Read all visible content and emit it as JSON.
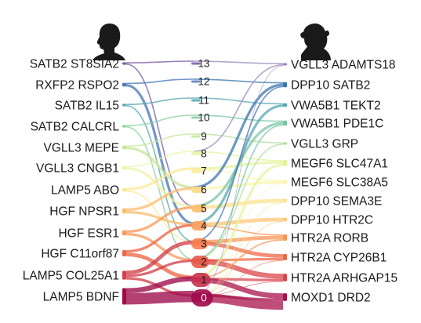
{
  "icons": {
    "left": "human-head-silhouette-icon",
    "right": "monkey-head-silhouette-icon"
  },
  "chart_data": {
    "type": "sankey",
    "left_nodes": [
      {
        "label": "SATB2 ST8SIA2",
        "color": "#7b5fa6",
        "weight": 2
      },
      {
        "label": "RXFP2 RSPO2",
        "color": "#4a78b8",
        "weight": 3
      },
      {
        "label": "SATB2 IL15",
        "color": "#58a6b2",
        "weight": 2
      },
      {
        "label": "SATB2 CALCRL",
        "color": "#8ecfa0",
        "weight": 2
      },
      {
        "label": "VGLL3 MEPE",
        "color": "#c5e79c",
        "weight": 3
      },
      {
        "label": "VGLL3 CNGB1",
        "color": "#eef4aa",
        "weight": 3
      },
      {
        "label": "LAMP5 ABO",
        "color": "#fde897",
        "weight": 3
      },
      {
        "label": "HGF NPSR1",
        "color": "#fdbd6f",
        "weight": 4
      },
      {
        "label": "HGF ESR1",
        "color": "#f99a5b",
        "weight": 4
      },
      {
        "label": "HGF C11orf87",
        "color": "#ed6645",
        "weight": 5
      },
      {
        "label": "LAMP5 COL25A1",
        "color": "#d2404c",
        "weight": 7
      },
      {
        "label": "LAMP5 BDNF",
        "color": "#9e0a4a",
        "weight": 13
      }
    ],
    "right_nodes": [
      {
        "label": "VGLL3 ADAMTS18",
        "color": "#9b87bd",
        "weight": 2
      },
      {
        "label": "DPP10 SATB2",
        "color": "#3b75b1",
        "weight": 4
      },
      {
        "label": "VWA5B1 TEKT2",
        "color": "#58a6b2",
        "weight": 3
      },
      {
        "label": "VWA5B1 PDE1C",
        "color": "#79c5a4",
        "weight": 4
      },
      {
        "label": "VGLL3 GRP",
        "color": "#b3df9d",
        "weight": 2
      },
      {
        "label": "MEGF6 SLC47A1",
        "color": "#e4f39d",
        "weight": 5
      },
      {
        "label": "MEGF6 SLC38A5",
        "color": "#fbf4ac",
        "weight": 3
      },
      {
        "label": "DPP10 SEMA3E",
        "color": "#fee28e",
        "weight": 3
      },
      {
        "label": "DPP10 HTR2C",
        "color": "#fdc677",
        "weight": 3
      },
      {
        "label": "HTR2A RORB",
        "color": "#f99656",
        "weight": 5
      },
      {
        "label": "HTR2A CYP26B1",
        "color": "#ef6a47",
        "weight": 5
      },
      {
        "label": "HTR2A ARHGAP15",
        "color": "#d9464b",
        "weight": 6
      },
      {
        "label": "MOXD1 DRD2",
        "color": "#a8124a",
        "weight": 6
      }
    ],
    "middle_nodes": [
      {
        "label": "13",
        "color": "#7b5fa6",
        "weight": 1
      },
      {
        "label": "12",
        "color": "#5c84bd",
        "weight": 1
      },
      {
        "label": "11",
        "color": "#58a6b2",
        "weight": 1
      },
      {
        "label": "10",
        "color": "#8ecfa0",
        "weight": 1
      },
      {
        "label": "9",
        "color": "#c5e79c",
        "weight": 1
      },
      {
        "label": "8",
        "color": "#e6f4a4",
        "weight": 2
      },
      {
        "label": "7",
        "color": "#fbec9c",
        "weight": 3
      },
      {
        "label": "6",
        "color": "#fdd885",
        "weight": 4
      },
      {
        "label": "5",
        "color": "#fdbd6f",
        "weight": 5
      },
      {
        "label": "4",
        "color": "#fba15e",
        "weight": 6
      },
      {
        "label": "3",
        "color": "#f47e50",
        "weight": 7
      },
      {
        "label": "2",
        "color": "#e55a49",
        "weight": 8
      },
      {
        "label": "1",
        "color": "#c7324c",
        "weight": 9
      },
      {
        "label": "0",
        "color": "#9e0a4a",
        "weight": 11
      }
    ],
    "flows_left_to_middle": [
      [
        0,
        13,
        1
      ],
      [
        0,
        5,
        1
      ],
      [
        1,
        12,
        1
      ],
      [
        1,
        4,
        2
      ],
      [
        2,
        11,
        1
      ],
      [
        2,
        3,
        1
      ],
      [
        3,
        10,
        1
      ],
      [
        3,
        2,
        1
      ],
      [
        4,
        9,
        1
      ],
      [
        4,
        6,
        2
      ],
      [
        5,
        8,
        1
      ],
      [
        5,
        5,
        2
      ],
      [
        6,
        7,
        2
      ],
      [
        6,
        3,
        1
      ],
      [
        7,
        6,
        2
      ],
      [
        7,
        4,
        2
      ],
      [
        8,
        5,
        2
      ],
      [
        8,
        2,
        2
      ],
      [
        9,
        4,
        2
      ],
      [
        9,
        1,
        3
      ],
      [
        10,
        3,
        3
      ],
      [
        10,
        2,
        2
      ],
      [
        10,
        0,
        2
      ],
      [
        11,
        1,
        4
      ],
      [
        11,
        0,
        9
      ]
    ],
    "flows_middle_to_right": [
      [
        13,
        0,
        1
      ],
      [
        12,
        1,
        1
      ],
      [
        11,
        2,
        1
      ],
      [
        10,
        3,
        1
      ],
      [
        9,
        4,
        1
      ],
      [
        8,
        0,
        1
      ],
      [
        8,
        5,
        1
      ],
      [
        7,
        5,
        2
      ],
      [
        7,
        6,
        1
      ],
      [
        6,
        1,
        2
      ],
      [
        6,
        6,
        2
      ],
      [
        5,
        3,
        2
      ],
      [
        5,
        7,
        3
      ],
      [
        4,
        2,
        2
      ],
      [
        4,
        8,
        3
      ],
      [
        4,
        9,
        1
      ],
      [
        3,
        1,
        1
      ],
      [
        3,
        9,
        3
      ],
      [
        3,
        10,
        3
      ],
      [
        2,
        3,
        1
      ],
      [
        2,
        4,
        1
      ],
      [
        2,
        10,
        2
      ],
      [
        2,
        11,
        4
      ],
      [
        1,
        5,
        2
      ],
      [
        1,
        9,
        1
      ],
      [
        1,
        11,
        2
      ],
      [
        1,
        12,
        4
      ],
      [
        0,
        12,
        2
      ],
      [
        0,
        11,
        0
      ],
      [
        0,
        0,
        0
      ],
      [
        0,
        6,
        0
      ],
      [
        0,
        8,
        0
      ],
      [
        0,
        7,
        0
      ],
      [
        0,
        10,
        0
      ],
      [
        0,
        12,
        7
      ]
    ]
  }
}
